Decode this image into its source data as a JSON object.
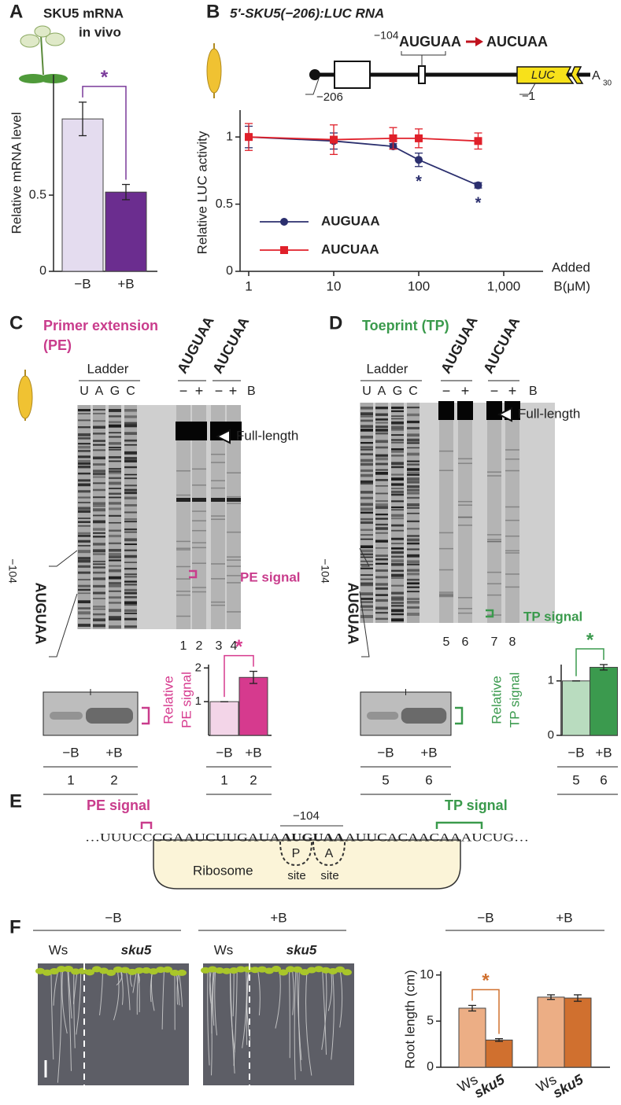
{
  "panels": [
    "A",
    "B",
    "C",
    "D",
    "E",
    "F"
  ],
  "chart_data": [
    {
      "type": "bar",
      "title": "SKU5 mRNA",
      "subtitle": "in vivo",
      "ylabel": [
        "Relative mRNA level"
      ],
      "categories": [
        "−B",
        "+B"
      ],
      "values": [
        1,
        0.52
      ],
      "errors": [
        0.11,
        0.05
      ],
      "colors": [
        "#e4dcef",
        "#6b2d8f"
      ],
      "ylim": [
        0,
        1.29
      ],
      "yticks": [
        0,
        0.5
      ],
      "annotation": "*",
      "annotation_color": "#7a3a9a"
    },
    {
      "type": "line",
      "title": "5′-SKU5(−206):LUC RNA",
      "xscale": "log",
      "x": [
        1,
        10,
        50,
        100,
        500
      ],
      "xlim": [
        1,
        1000
      ],
      "xticks": [
        1,
        10,
        100,
        {
          "value": 1000,
          "label": "1,000"
        }
      ],
      "ylim": [
        0,
        1.2
      ],
      "yticks": [
        0,
        0.5,
        1
      ],
      "ylabel": [
        "Relative LUC activity"
      ],
      "xlabel": [
        "Added",
        "B(μM)"
      ],
      "series": [
        {
          "name": "AUGUAA",
          "color": "#2b2f6e",
          "marker": "circle",
          "values": [
            1,
            0.97,
            0.93,
            0.83,
            0.64
          ],
          "errors": [
            0.08,
            0.06,
            0.02,
            0.05,
            0.02
          ]
        },
        {
          "name": "AUCUAA",
          "color": "#e0202a",
          "marker": "square",
          "values": [
            1,
            0.98,
            0.99,
            0.99,
            0.97
          ],
          "errors": [
            0.1,
            0.11,
            0.08,
            0.07,
            0.06
          ]
        }
      ],
      "annotations": [
        {
          "x": 100,
          "text": "*"
        },
        {
          "x": 500,
          "text": "*"
        }
      ]
    },
    {
      "type": "bar",
      "ylabel": [
        "Relative",
        "PE signal"
      ],
      "categories": [
        "−B",
        "+B"
      ],
      "lanes": [
        "1",
        "2"
      ],
      "values": [
        1,
        1.72
      ],
      "errors": [
        0,
        0.18
      ],
      "colors": [
        "#f3d5e8",
        "#d63a8e"
      ],
      "ylim": [
        0,
        2.1
      ],
      "yticks": [
        1,
        2
      ],
      "annotation": "*",
      "annotation_color": "#d63a8e"
    },
    {
      "type": "bar",
      "ylabel": [
        "Relative",
        "TP signal"
      ],
      "categories": [
        "−B",
        "+B"
      ],
      "lanes": [
        "5",
        "6"
      ],
      "values": [
        1,
        1.25
      ],
      "errors": [
        0,
        0.05
      ],
      "colors": [
        "#b9dcbf",
        "#3b9a4e"
      ],
      "ylim": [
        0,
        1.3
      ],
      "yticks": [
        0,
        1
      ],
      "annotation": "*",
      "annotation_color": "#3b9a4e"
    },
    {
      "type": "bar",
      "ylabel": [
        "Root length (cm)"
      ],
      "groups": [
        "−B",
        "+B"
      ],
      "categories": [
        "Ws",
        "sku5",
        "Ws",
        "sku5"
      ],
      "values": [
        6.4,
        2.95,
        7.6,
        7.5
      ],
      "errors": [
        0.3,
        0.15,
        0.25,
        0.35
      ],
      "colors": [
        "#ecae85",
        "#d0702f",
        "#ecae85",
        "#d0702f"
      ],
      "ylim": [
        0,
        10.4
      ],
      "yticks": [
        0,
        5,
        10
      ],
      "annotation": "*",
      "annotation_color": "#d0702f"
    }
  ],
  "construct": {
    "start": "−206",
    "site_pos": "−104",
    "site": "AUGUAA",
    "mutant": "AUCUAA",
    "end": "−1",
    "reporter": "LUC",
    "tail": "A",
    "tail_sub": "30"
  },
  "gels": [
    {
      "title": [
        "Primer extension",
        "(PE)"
      ],
      "color": "#c93c8c",
      "ladder": "Ladder",
      "lanes": [
        "U",
        "A",
        "G",
        "C"
      ],
      "constructs": [
        "AUGUAA",
        "AUCUAA"
      ],
      "conditions": [
        "−",
        "+"
      ],
      "reagent": "B",
      "full_length": "Full-length",
      "signal": "PE signal",
      "lane_numbers": [
        "1",
        "2",
        "3",
        "4"
      ],
      "site_pos": "−104",
      "site": "AUGUAA",
      "inset_labels": [
        "−B",
        "+B"
      ],
      "inset_lanes": [
        "1",
        "2"
      ]
    },
    {
      "title": [
        "Toeprint (TP)"
      ],
      "color": "#3a9a4c",
      "ladder": "Ladder",
      "lanes": [
        "U",
        "A",
        "G",
        "C"
      ],
      "constructs": [
        "AUGUAA",
        "AUCUAA"
      ],
      "conditions": [
        "−",
        "+"
      ],
      "reagent": "B",
      "full_length": "Full-length",
      "signal": "TP signal",
      "lane_numbers": [
        "5",
        "6",
        "7",
        "8"
      ],
      "site_pos": "−104",
      "site": "AUGUAA",
      "inset_labels": [
        "−B",
        "+B"
      ],
      "inset_lanes": [
        "5",
        "6"
      ]
    }
  ],
  "scheme": {
    "pe": "PE signal",
    "tp": "TP signal",
    "pos": "−104",
    "seq_left": "…UUUCCCGAAUCUUGAUA",
    "seq_site": "AUGUAA",
    "seq_right": "AUUCACAACAAAUCUG…",
    "ribosome": "Ribosome",
    "p": "P",
    "a": "A",
    "site": "site"
  },
  "photos": {
    "groups": [
      "−B",
      "+B"
    ],
    "labels": [
      "Ws",
      "sku5"
    ]
  }
}
